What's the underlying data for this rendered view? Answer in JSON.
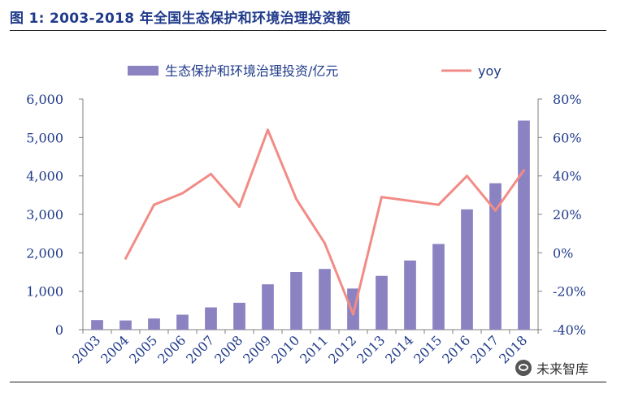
{
  "figure": {
    "title": "图 1: 2003-2018 年全国生态保护和环境治理投资额"
  },
  "watermark": {
    "text": "未来智库",
    "icon": "wechat-icon"
  },
  "colors": {
    "bar": "#8b82c2",
    "line": "#f28b86",
    "axis_text": "#1f3a8a",
    "title": "#1f3a8a"
  },
  "chart_data": {
    "type": "bar",
    "categories": [
      "2003",
      "2004",
      "2005",
      "2006",
      "2007",
      "2008",
      "2009",
      "2010",
      "2011",
      "2012",
      "2013",
      "2014",
      "2015",
      "2016",
      "2017",
      "2018"
    ],
    "series": [
      {
        "name": "生态保护和环境治理投资/亿元",
        "type": "bar",
        "axis": "left",
        "values": [
          250,
          240,
          290,
          390,
          580,
          700,
          1180,
          1500,
          1580,
          1070,
          1400,
          1800,
          2230,
          3130,
          3810,
          5440
        ]
      },
      {
        "name": "yoy",
        "type": "line",
        "axis": "right",
        "values": [
          null,
          -3,
          25,
          31,
          41,
          24,
          64,
          28,
          5,
          -32,
          29,
          27,
          25,
          40,
          22,
          43
        ]
      }
    ],
    "y_left": {
      "ylim": [
        0,
        6000
      ],
      "ticks": [
        "0",
        "1,000",
        "2,000",
        "3,000",
        "4,000",
        "5,000",
        "6,000"
      ],
      "tick_values": [
        0,
        1000,
        2000,
        3000,
        4000,
        5000,
        6000
      ]
    },
    "y_right": {
      "ylim": [
        -40,
        80
      ],
      "ticks": [
        "-40%",
        "-20%",
        "0%",
        "20%",
        "40%",
        "60%",
        "80%"
      ],
      "tick_values": [
        -40,
        -20,
        0,
        20,
        40,
        60,
        80
      ]
    },
    "legend_position": "top",
    "grid": false
  }
}
